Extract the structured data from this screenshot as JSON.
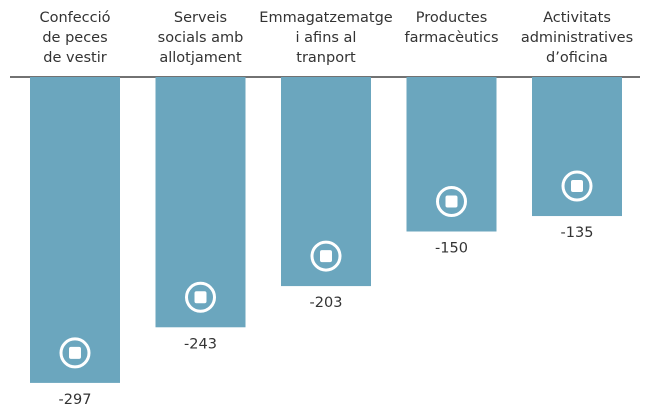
{
  "chart_data": {
    "type": "bar",
    "categories": [
      [
        "Confecció",
        "de peces",
        "de vestir"
      ],
      [
        "Serveis",
        "socials amb",
        "allotjament"
      ],
      [
        "Emmagatzematge",
        "i afins al",
        "tranport"
      ],
      [
        "Productes",
        "farmacèutics"
      ],
      [
        "Activitats",
        "administratives",
        "d’oficina"
      ]
    ],
    "values": [
      -297,
      -243,
      -203,
      -150,
      -135
    ],
    "color": "#6ba6be"
  }
}
